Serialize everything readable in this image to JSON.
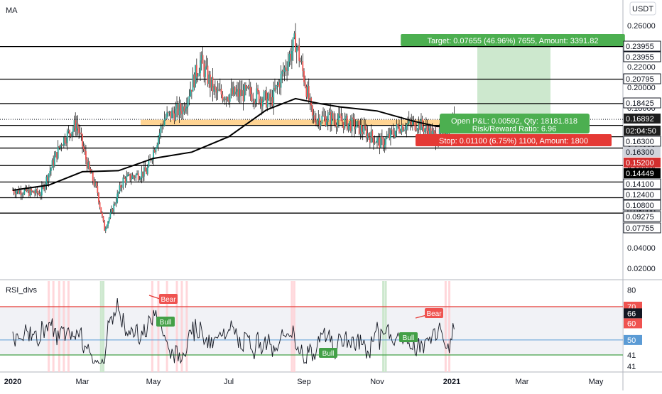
{
  "panes": {
    "main_label": "MA",
    "rsi_label": "RSI_divs",
    "currency_button": "USDT"
  },
  "time_axis": [
    "2020",
    "Mar",
    "May",
    "Jul",
    "Sep",
    "Nov",
    "2021",
    "Mar",
    "May"
  ],
  "colors": {
    "up": "#26a69a",
    "down": "#ef5350",
    "candle": "#000000",
    "ma": "#000000",
    "zone": "#ffcc80",
    "target_zone": "#c8e6c9",
    "profit": "#4caf50",
    "loss": "#e53935",
    "rsi_line": "#131722",
    "rsi_upper": "#e53935",
    "rsi_lower": "#43a047",
    "rsi_mid": "#5b9bd5"
  },
  "position": {
    "target_label": "Target: 0.07655 (46.96%) 7655, Amount: 3391.82",
    "open_pnl_label": "Open P&L: 0.00592, Qty: 18181.818",
    "risk_reward_label": "Risk/Reward Ratio: 6.96",
    "stop_label": "Stop: 0.01100 (6.75%) 1100, Amount: 1800"
  },
  "price_badges": [
    {
      "text": "0.23955",
      "style": "outline"
    },
    {
      "text": "0.23955",
      "style": "outline"
    },
    {
      "text": "0.20795",
      "style": "outline"
    },
    {
      "text": "0.18425",
      "style": "outline"
    },
    {
      "text": "0.16892",
      "style": "dark"
    },
    {
      "text": "02:04:50",
      "style": "dark"
    },
    {
      "text": "0.16300",
      "style": "outline"
    },
    {
      "text": "0.16300",
      "style": "gray"
    },
    {
      "text": "0.15200",
      "style": "red"
    },
    {
      "text": "0.14449",
      "style": "black"
    },
    {
      "text": "0.14100",
      "style": "outline"
    },
    {
      "text": "0.12400",
      "style": "outline"
    },
    {
      "text": "0.10800",
      "style": "outline"
    },
    {
      "text": "0.09275",
      "style": "outline"
    },
    {
      "text": "0.07755",
      "style": "outline"
    }
  ],
  "rsi_badges": [
    {
      "text": "70",
      "style": "red"
    },
    {
      "text": "66",
      "style": "black"
    },
    {
      "text": "60",
      "style": "red"
    },
    {
      "text": "50",
      "style": "blue"
    },
    {
      "text": "41",
      "style": "plain"
    },
    {
      "text": "41",
      "style": "plain"
    }
  ],
  "rsi_labels": [
    {
      "text": "Bear",
      "type": "bear"
    },
    {
      "text": "Bull",
      "type": "bull"
    },
    {
      "text": "Bull",
      "type": "bull"
    },
    {
      "text": "Bull",
      "type": "bull"
    },
    {
      "text": "Bear",
      "type": "bear"
    }
  ],
  "chart_data": [
    {
      "type": "candlestick",
      "title": "",
      "price_axis_ticks": [
        0.26,
        0.24,
        0.22,
        0.2,
        0.18,
        0.16,
        0.14,
        0.12,
        0.1,
        0.08,
        0.04,
        0.02
      ],
      "price_axis_tick_labels": [
        "0.26000",
        "0.24000",
        "0.22000",
        "0.20000",
        "0.18000",
        "0.16000",
        "0.14000",
        "0.12000",
        "0.10000",
        "0.08000",
        "0.04000",
        "0.02000"
      ],
      "x_ticks": [
        "2020",
        "Mar",
        "May",
        "Jul",
        "Sep",
        "Nov",
        "2021",
        "Mar",
        "May"
      ],
      "ma_series_approx": {
        "name": "MA",
        "x": [
          "2020-01-01",
          "2020-02-01",
          "2020-03-01",
          "2020-04-01",
          "2020-05-01",
          "2020-06-01",
          "2020-07-01",
          "2020-08-01",
          "2020-08-25",
          "2020-09-15",
          "2020-10-01",
          "2020-11-01",
          "2020-12-01",
          "2020-12-20",
          "2021-01-03"
        ],
        "y": [
          0.1,
          0.105,
          0.118,
          0.119,
          0.131,
          0.137,
          0.152,
          0.178,
          0.189,
          0.184,
          0.181,
          0.177,
          0.167,
          0.162,
          0.162
        ]
      },
      "horizontal_levels": [
        0.23955,
        0.20795,
        0.18425,
        0.163,
        0.152,
        0.141,
        0.124,
        0.108,
        0.09275,
        0.07755
      ],
      "last_price": 0.16892,
      "position": {
        "entry": 0.163,
        "target": 0.23955,
        "stop": 0.152
      }
    },
    {
      "type": "line",
      "title": "RSI_divs",
      "y_ticks": [
        80,
        60
      ],
      "levels": {
        "upper": 70,
        "mid": 50,
        "lower": 41
      },
      "current": 66
    }
  ]
}
